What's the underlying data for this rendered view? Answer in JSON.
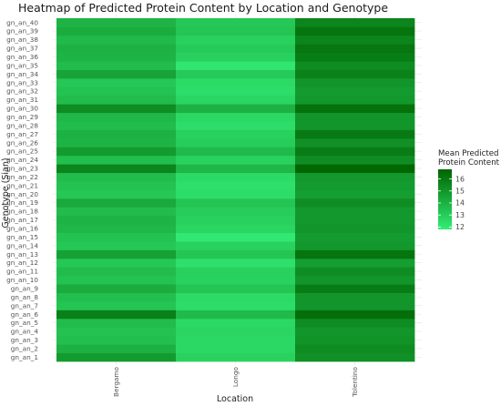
{
  "chart_data": {
    "type": "heatmap",
    "title": "Heatmap of Predicted Protein Content by Location and Genotype",
    "xlabel": "Location",
    "ylabel": "Genotype (Sian)",
    "x_categories": [
      "Bergamo",
      "Longo",
      "Tolentino"
    ],
    "y_categories": [
      "gn_an_1",
      "gn_an_2",
      "gn_an_3",
      "gn_an_4",
      "gn_an_5",
      "gn_an_6",
      "gn_an_7",
      "gn_an_8",
      "gn_an_9",
      "gn_an_10",
      "gn_an_11",
      "gn_an_12",
      "gn_an_13",
      "gn_an_14",
      "gn_an_15",
      "gn_an_16",
      "gn_an_17",
      "gn_an_18",
      "gn_an_19",
      "gn_an_20",
      "gn_an_21",
      "gn_an_22",
      "gn_an_23",
      "gn_an_24",
      "gn_an_25",
      "gn_an_26",
      "gn_an_27",
      "gn_an_28",
      "gn_an_29",
      "gn_an_30",
      "gn_an_31",
      "gn_an_32",
      "gn_an_33",
      "gn_an_34",
      "gn_an_35",
      "gn_an_36",
      "gn_an_37",
      "gn_an_38",
      "gn_an_39",
      "gn_an_40"
    ],
    "values": {
      "Bergamo": [
        14.8,
        14.0,
        13.5,
        13.4,
        13.6,
        15.8,
        13.3,
        13.5,
        14.2,
        13.4,
        13.6,
        13.2,
        14.6,
        13.2,
        13.4,
        13.8,
        13.9,
        13.6,
        14.3,
        13.2,
        13.4,
        13.6,
        15.6,
        13.5,
        14.8,
        13.9,
        14.0,
        13.6,
        13.8,
        15.3,
        13.6,
        13.4,
        13.2,
        14.5,
        13.6,
        13.9,
        14.0,
        13.7,
        14.2,
        13.9
      ],
      "Longo": [
        12.8,
        12.6,
        12.6,
        12.7,
        12.6,
        13.7,
        12.4,
        12.5,
        13.3,
        12.8,
        12.9,
        12.3,
        13.3,
        12.8,
        12.0,
        12.7,
        12.9,
        13.0,
        13.3,
        12.4,
        12.3,
        12.5,
        13.8,
        12.8,
        13.7,
        13.0,
        12.9,
        12.4,
        12.6,
        14.0,
        12.7,
        12.4,
        12.5,
        13.1,
        12.1,
        12.9,
        13.1,
        12.9,
        13.3,
        13.2
      ],
      "Tolentino": [
        15.2,
        15.4,
        15.1,
        15.0,
        15.3,
        16.4,
        15.0,
        15.0,
        15.9,
        15.0,
        15.3,
        14.7,
        16.2,
        14.9,
        14.8,
        15.0,
        14.9,
        14.9,
        15.3,
        14.7,
        14.8,
        14.9,
        16.7,
        15.3,
        15.9,
        15.2,
        16.0,
        15.0,
        15.0,
        16.3,
        14.9,
        14.8,
        15.0,
        15.7,
        15.4,
        15.9,
        16.1,
        15.6,
        16.2,
        15.6
      ]
    },
    "color_scale": {
      "title_lines": [
        "Mean Predicted",
        "Protein Content"
      ],
      "low": 11.8,
      "high": 16.8,
      "low_color": "#33ee77",
      "high_color": "#006400",
      "ticks": [
        12,
        13,
        14,
        15,
        16
      ]
    },
    "legend_position": "right",
    "grid": true
  }
}
